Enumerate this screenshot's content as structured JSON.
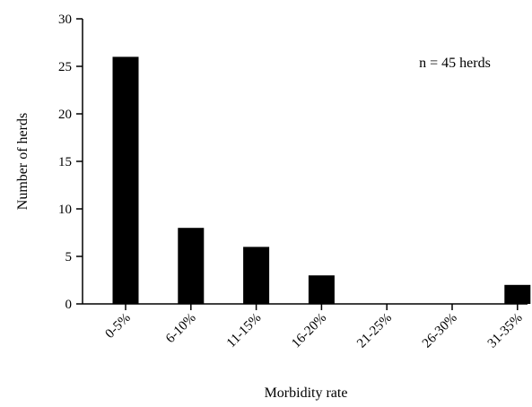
{
  "chart_data": {
    "type": "bar",
    "categories": [
      "0-5%",
      "6-10%",
      "11-15%",
      "16-20%",
      "21-25%",
      "26-30%",
      "31-35%"
    ],
    "values": [
      26,
      8,
      6,
      3,
      0,
      0,
      2
    ],
    "title": "",
    "xlabel": "Morbidity rate",
    "ylabel": "Number of herds",
    "ylim": [
      0,
      30
    ],
    "yticks": [
      0,
      5,
      10,
      15,
      20,
      25,
      30
    ],
    "annotation": "n = 45 herds",
    "grid": false,
    "bar_color": "#000000"
  }
}
